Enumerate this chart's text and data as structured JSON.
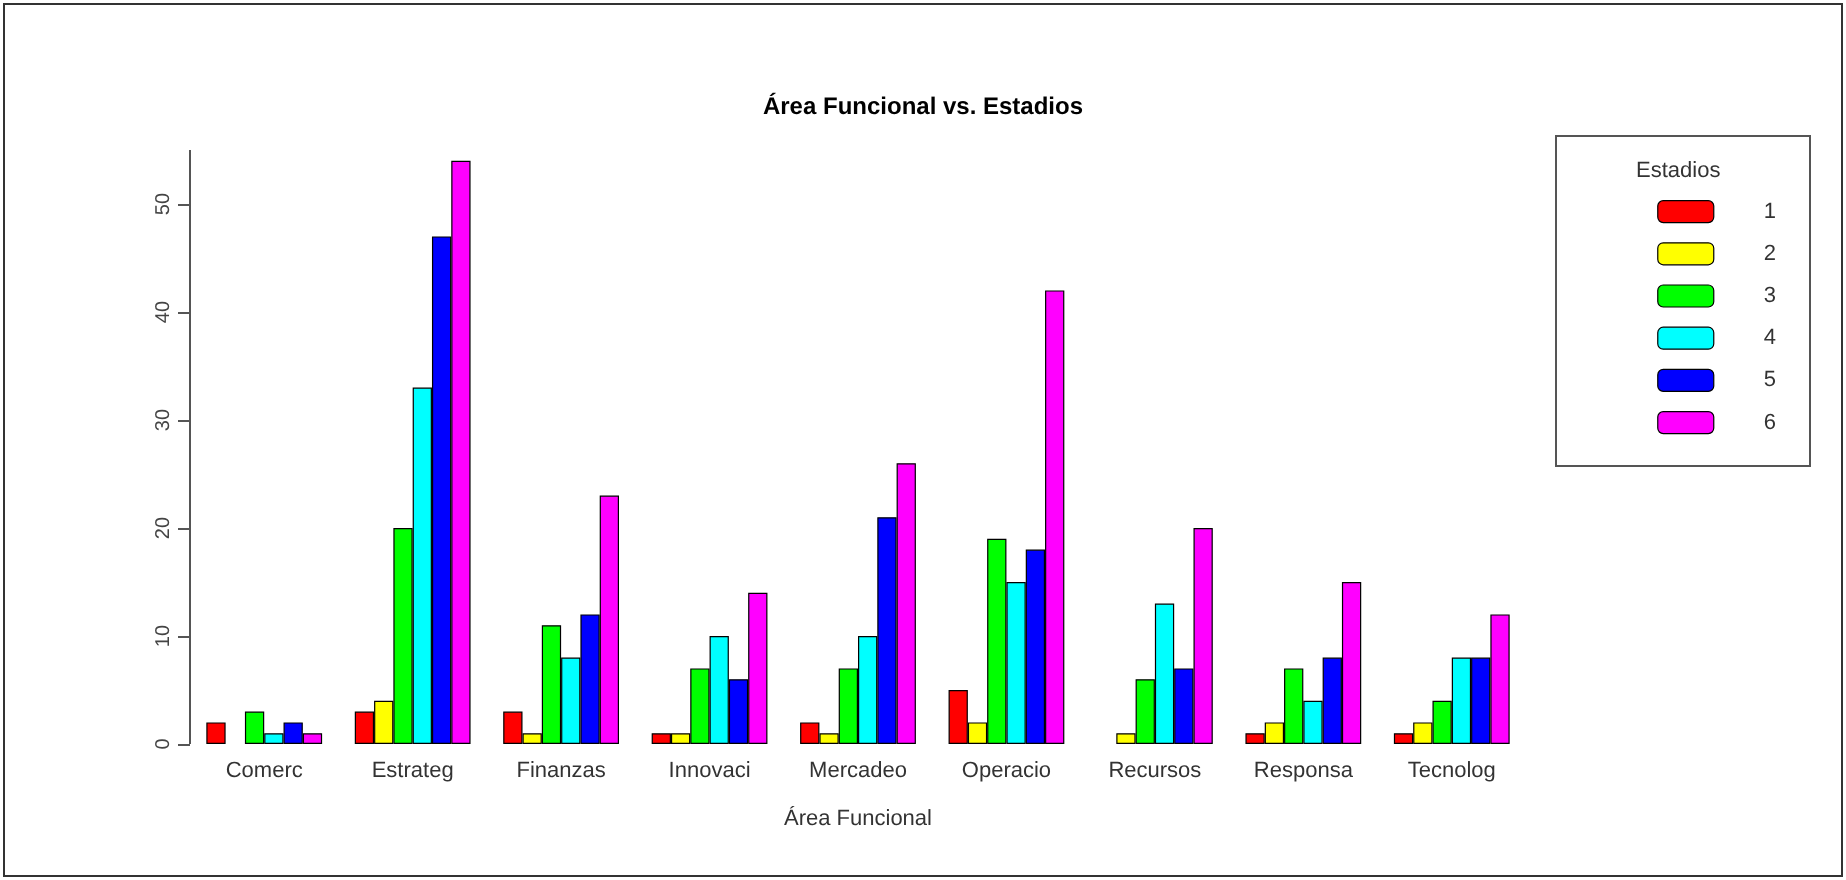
{
  "chart_data": {
    "type": "bar",
    "title": "Área Funcional vs. Estadios",
    "xlabel": "Área Funcional",
    "legend_title": "Estadios",
    "categories": [
      "Comerc",
      "Estrateg",
      "Finanzas",
      "Innovaci",
      "Mercadeo",
      "Operacio",
      "Recursos",
      "Responsa",
      "Tecnolog"
    ],
    "series": [
      {
        "name": "1",
        "color": "#ff0000",
        "values": [
          2,
          3,
          3,
          1,
          2,
          5,
          0,
          1,
          1
        ]
      },
      {
        "name": "2",
        "color": "#ffff00",
        "values": [
          0,
          4,
          1,
          1,
          1,
          2,
          1,
          2,
          2
        ]
      },
      {
        "name": "3",
        "color": "#00ff00",
        "values": [
          3,
          20,
          11,
          7,
          7,
          19,
          6,
          7,
          4
        ]
      },
      {
        "name": "4",
        "color": "#00ffff",
        "values": [
          1,
          33,
          8,
          10,
          10,
          15,
          13,
          4,
          8
        ]
      },
      {
        "name": "5",
        "color": "#0000ff",
        "values": [
          2,
          47,
          12,
          6,
          21,
          18,
          7,
          8,
          8
        ]
      },
      {
        "name": "6",
        "color": "#ff00ff",
        "values": [
          1,
          54,
          23,
          14,
          26,
          42,
          20,
          15,
          12
        ]
      }
    ],
    "ylim": [
      0,
      55
    ],
    "yticks": [
      0,
      10,
      20,
      30,
      40,
      50
    ],
    "grid": false,
    "legend": "right"
  }
}
